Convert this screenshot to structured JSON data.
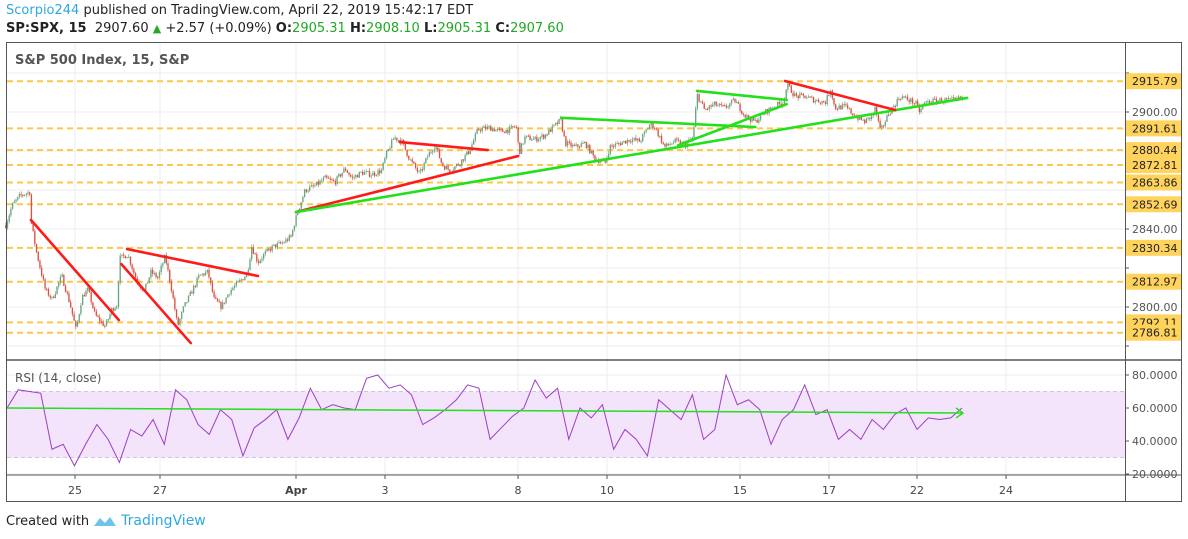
{
  "header": {
    "author": "Scorpio244",
    "published": "published on TradingView.com, April 22, 2019 15:42:17 EDT",
    "symbol": "SP:SPX, 15",
    "last": "2907.60",
    "change": "+2.57 (+0.09%)",
    "o_label": "O:",
    "o": "2905.31",
    "h_label": "H:",
    "h": "2908.10",
    "l_label": "L:",
    "l": "2905.31",
    "c_label": "C:",
    "c": "2907.60"
  },
  "footer": {
    "created_with": "Created with",
    "brand": "TradingView"
  },
  "colors": {
    "up": "#6ba583",
    "down": "#d75442",
    "level": "#fbc84a",
    "level_label": "#ffd35c",
    "trend_red": "#ff1a1a",
    "trend_green": "#22e01a",
    "rsi": "#9c3fc4",
    "rsi_band": "#f3e3fb",
    "brand": "#2fa8e0"
  },
  "chart_data": [
    {
      "type": "candlestick",
      "title": "S&P 500 Index, 15, S&P",
      "interval_minutes": 15,
      "price_axis": {
        "ticks": [
          2780,
          2800,
          2820,
          2840,
          2860,
          2880,
          2900,
          2920
        ],
        "range": [
          2778,
          2932
        ]
      },
      "time_axis": {
        "tick_labels": [
          "25",
          "27",
          "Apr",
          "3",
          "8",
          "10",
          "15",
          "17",
          "22",
          "24"
        ]
      },
      "grid": true,
      "close_path": [
        [
          "Mar 21",
          "12:15",
          2842
        ],
        [
          "Mar 21",
          "13:10",
          2852
        ],
        [
          "Mar 21",
          "14:20",
          2857
        ],
        [
          "Mar 21",
          "15:45",
          2859
        ],
        [
          "Mar 22",
          "09:30",
          2844
        ],
        [
          "Mar 22",
          "10:15",
          2829
        ],
        [
          "Mar 22",
          "11:35",
          2809
        ],
        [
          "Mar 22",
          "12:35",
          2804
        ],
        [
          "Mar 22",
          "14:00",
          2816
        ],
        [
          "Mar 22",
          "15:15",
          2801
        ],
        [
          "Mar 25",
          "09:40",
          2788
        ],
        [
          "Mar 25",
          "10:30",
          2805
        ],
        [
          "Mar 25",
          "11:25",
          2809
        ],
        [
          "Mar 25",
          "12:25",
          2796
        ],
        [
          "Mar 25",
          "13:55",
          2790
        ],
        [
          "Mar 25",
          "14:55",
          2799
        ],
        [
          "Mar 25",
          "15:40",
          2801
        ],
        [
          "Mar 26",
          "09:45",
          2825
        ],
        [
          "Mar 26",
          "10:55",
          2827
        ],
        [
          "Mar 26",
          "12:05",
          2815
        ],
        [
          "Mar 26",
          "13:20",
          2808
        ],
        [
          "Mar 26",
          "14:20",
          2818
        ],
        [
          "Mar 26",
          "15:20",
          2815
        ],
        [
          "Mar 27",
          "10:15",
          2826
        ],
        [
          "Mar 27",
          "11:15",
          2808
        ],
        [
          "Mar 27",
          "12:05",
          2790
        ],
        [
          "Mar 27",
          "13:00",
          2800
        ],
        [
          "Mar 27",
          "14:10",
          2808
        ],
        [
          "Mar 27",
          "15:15",
          2816
        ],
        [
          "Mar 28",
          "09:55",
          2818
        ],
        [
          "Mar 28",
          "10:50",
          2804
        ],
        [
          "Mar 28",
          "11:55",
          2800
        ],
        [
          "Mar 28",
          "13:05",
          2808
        ],
        [
          "Mar 28",
          "14:15",
          2812
        ],
        [
          "Mar 28",
          "15:40",
          2817
        ],
        [
          "Mar 29",
          "09:45",
          2831
        ],
        [
          "Mar 29",
          "10:40",
          2823
        ],
        [
          "Mar 29",
          "11:50",
          2828
        ],
        [
          "Mar 29",
          "12:55",
          2831
        ],
        [
          "Mar 29",
          "14:20",
          2833
        ],
        [
          "Mar 29",
          "15:30",
          2836
        ],
        [
          "Apr 1",
          "09:40",
          2848
        ],
        [
          "Apr 1",
          "10:50",
          2860
        ],
        [
          "Apr 1",
          "12:15",
          2862
        ],
        [
          "Apr 1",
          "13:45",
          2866
        ],
        [
          "Apr 1",
          "15:10",
          2864
        ],
        [
          "Apr 2",
          "10:15",
          2871
        ],
        [
          "Apr 2",
          "11:15",
          2866
        ],
        [
          "Apr 2",
          "12:40",
          2869
        ],
        [
          "Apr 2",
          "14:10",
          2868
        ],
        [
          "Apr 2",
          "15:35",
          2870
        ],
        [
          "Apr 3",
          "09:40",
          2878
        ],
        [
          "Apr 3",
          "10:50",
          2887
        ],
        [
          "Apr 3",
          "11:55",
          2885
        ],
        [
          "Apr 3",
          "13:05",
          2876
        ],
        [
          "Apr 3",
          "14:35",
          2868
        ],
        [
          "Apr 3",
          "15:50",
          2878
        ],
        [
          "Apr 4",
          "10:25",
          2883
        ],
        [
          "Apr 4",
          "11:25",
          2873
        ],
        [
          "Apr 4",
          "12:35",
          2870
        ],
        [
          "Apr 4",
          "14:00",
          2874
        ],
        [
          "Apr 4",
          "15:25",
          2880
        ],
        [
          "Apr 5",
          "10:05",
          2891
        ],
        [
          "Apr 5",
          "11:50",
          2892
        ],
        [
          "Apr 5",
          "13:20",
          2890
        ],
        [
          "Apr 5",
          "14:45",
          2891
        ],
        [
          "Apr 5",
          "15:40",
          2893
        ],
        [
          "Apr 8",
          "09:40",
          2879
        ],
        [
          "Apr 8",
          "10:30",
          2887
        ],
        [
          "Apr 8",
          "12:00",
          2886
        ],
        [
          "Apr 8",
          "13:25",
          2888
        ],
        [
          "Apr 8",
          "14:55",
          2893
        ],
        [
          "Apr 8",
          "15:45",
          2896
        ],
        [
          "Apr 9",
          "09:50",
          2884
        ],
        [
          "Apr 9",
          "11:15",
          2882
        ],
        [
          "Apr 9",
          "12:45",
          2884
        ],
        [
          "Apr 9",
          "14:10",
          2876
        ],
        [
          "Apr 9",
          "15:40",
          2874
        ],
        [
          "Apr 10",
          "09:55",
          2882
        ],
        [
          "Apr 10",
          "11:25",
          2884
        ],
        [
          "Apr 10",
          "12:55",
          2886
        ],
        [
          "Apr 10",
          "14:20",
          2885
        ],
        [
          "Apr 10",
          "15:50",
          2894
        ],
        [
          "Apr 11",
          "10:05",
          2892
        ],
        [
          "Apr 11",
          "11:30",
          2882
        ],
        [
          "Apr 11",
          "13:00",
          2885
        ],
        [
          "Apr 11",
          "14:30",
          2883
        ],
        [
          "Apr 11",
          "15:40",
          2887
        ],
        [
          "Apr 12",
          "09:40",
          2909
        ],
        [
          "Apr 12",
          "10:45",
          2901
        ],
        [
          "Apr 12",
          "12:15",
          2904
        ],
        [
          "Apr 12",
          "13:40",
          2902
        ],
        [
          "Apr 12",
          "15:10",
          2906
        ],
        [
          "Apr 15",
          "10:15",
          2898
        ],
        [
          "Apr 15",
          "11:45",
          2895
        ],
        [
          "Apr 15",
          "13:10",
          2900
        ],
        [
          "Apr 15",
          "14:35",
          2903
        ],
        [
          "Apr 15",
          "15:50",
          2905
        ],
        [
          "Apr 16",
          "09:50",
          2914
        ],
        [
          "Apr 16",
          "11:00",
          2908
        ],
        [
          "Apr 16",
          "12:25",
          2908
        ],
        [
          "Apr 16",
          "13:55",
          2906
        ],
        [
          "Apr 16",
          "15:25",
          2905
        ],
        [
          "Apr 17",
          "09:45",
          2912
        ],
        [
          "Apr 17",
          "10:20",
          2902
        ],
        [
          "Apr 17",
          "11:50",
          2903
        ],
        [
          "Apr 17",
          "13:15",
          2898
        ],
        [
          "Apr 17",
          "14:45",
          2895
        ],
        [
          "Apr 17",
          "15:50",
          2898
        ],
        [
          "Apr 18",
          "09:50",
          2902
        ],
        [
          "Apr 18",
          "10:35",
          2890
        ],
        [
          "Apr 18",
          "11:45",
          2899
        ],
        [
          "Apr 18",
          "13:30",
          2908
        ],
        [
          "Apr 18",
          "14:55",
          2906
        ],
        [
          "Apr 18",
          "15:50",
          2904
        ],
        [
          "Apr 22",
          "09:55",
          2900
        ],
        [
          "Apr 22",
          "10:40",
          2905
        ],
        [
          "Apr 22",
          "12:50",
          2906
        ],
        [
          "Apr 22",
          "15:00",
          2906
        ],
        [
          "Apr 22",
          "15:55",
          2907
        ],
        [
          "Apr 23",
          "09:40",
          2907.6
        ]
      ],
      "horizontal_levels": [
        2915.79,
        2891.61,
        2880.44,
        2872.81,
        2863.86,
        2852.69,
        2830.34,
        2812.97,
        2792.11,
        2786.81
      ],
      "trendlines": [
        {
          "color": "red",
          "from": [
            "Mar 22",
            "09:30",
            2844.6
          ],
          "to": [
            "Mar 25",
            "15:55",
            2793.3
          ]
        },
        {
          "color": "red",
          "from": [
            "Mar 26",
            "10:50",
            2829.7
          ],
          "to": [
            "Mar 29",
            "10:40",
            2815.9
          ]
        },
        {
          "color": "red",
          "from": [
            "Mar 26",
            "10:00",
            2822
          ],
          "to": [
            "Mar 27",
            "14:00",
            2781.5
          ]
        },
        {
          "color": "red",
          "from": [
            "Apr 1",
            "09:30",
            2848.7
          ],
          "to": [
            "Apr 8",
            "09:30",
            2877.4
          ]
        },
        {
          "color": "red",
          "from": [
            "Apr 3",
            "11:40",
            2884.6
          ],
          "to": [
            "Apr 5",
            "11:30",
            2880.5
          ]
        },
        {
          "color": "green",
          "from": [
            "Apr 1",
            "09:30",
            2848.7
          ],
          "to": [
            "Apr 23",
            "10:15",
            2907.2
          ]
        },
        {
          "color": "green",
          "from": [
            "Apr 8",
            "15:50",
            2897
          ],
          "to": [
            "Apr 15",
            "11:45",
            2892.3
          ]
        },
        {
          "color": "green",
          "from": [
            "Apr 12",
            "09:40",
            2910.8
          ],
          "to": [
            "Apr 16",
            "09:45",
            2906.2
          ]
        },
        {
          "color": "green",
          "from": [
            "Apr 11",
            "13:30",
            2883
          ],
          "to": [
            "Apr 16",
            "09:45",
            2904
          ]
        },
        {
          "color": "red",
          "from": [
            "Apr 16",
            "09:30",
            2915.9
          ],
          "to": [
            "Apr 18",
            "12:45",
            2901
          ]
        }
      ]
    },
    {
      "type": "line",
      "title": "RSI (14, close)",
      "y_axis": {
        "ticks": [
          "20.0000",
          "40.0000",
          "60.0000",
          "80.0000"
        ],
        "range": [
          18,
          86
        ]
      },
      "band": [
        30,
        70
      ],
      "trendline": {
        "color": "green",
        "from_value": 60,
        "to_value": 57,
        "arrow": true
      },
      "values": [
        60,
        71,
        70,
        69,
        35,
        38,
        25,
        38,
        50,
        41,
        27,
        47,
        43,
        53,
        38,
        71,
        65,
        50,
        44,
        59,
        53,
        31,
        48,
        53,
        59,
        41,
        54,
        72,
        59,
        62,
        60,
        59,
        78,
        80,
        72,
        74,
        68,
        50,
        54,
        59,
        65,
        74,
        72,
        41,
        48,
        55,
        60,
        77,
        66,
        72,
        41,
        60,
        54,
        62,
        35,
        47,
        41,
        31,
        65,
        59,
        53,
        68,
        41,
        47,
        80,
        62,
        65,
        59,
        38,
        53,
        59,
        74,
        56,
        59,
        41,
        47,
        41,
        53,
        47,
        56,
        60,
        47,
        54,
        53,
        54,
        60
      ]
    }
  ]
}
